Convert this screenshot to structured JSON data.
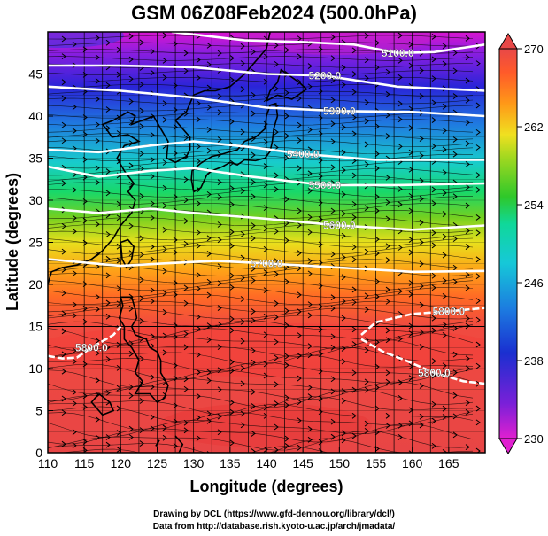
{
  "title": "GSM 06Z08Feb2024 (500.0hPa)",
  "xlabel": "Longitude (degrees)",
  "ylabel": "Latitude (degrees)",
  "credit_line1": "Drawing by DCL (https://www.gfd-dennou.org/library/dcl/)",
  "credit_line2": "Data from http://database.rish.kyoto-u.ac.jp/arch/jmadata/",
  "chart_data": {
    "type": "heatmap",
    "title": "GSM 06Z08Feb2024 (500.0hPa)",
    "xlabel": "Longitude (degrees)",
    "ylabel": "Latitude (degrees)",
    "xlim": [
      110,
      170
    ],
    "ylim": [
      0,
      50
    ],
    "x_ticks": [
      110,
      115,
      120,
      125,
      130,
      135,
      140,
      145,
      150,
      155,
      160,
      165
    ],
    "y_ticks": [
      0,
      5,
      10,
      15,
      20,
      25,
      30,
      35,
      40,
      45
    ],
    "colorbar": {
      "min": 230,
      "max": 270,
      "tick_labels": [
        "230",
        "238",
        "246",
        "254",
        "262",
        "270"
      ],
      "colors": [
        "#e020d0",
        "#7a20d8",
        "#1a2fd0",
        "#1c7ae0",
        "#16c8d8",
        "#10d89a",
        "#2ec82a",
        "#a0d820",
        "#f0e020",
        "#ff9818",
        "#ff5a2a",
        "#e84848"
      ]
    },
    "contours": [
      {
        "label": "5100.0",
        "points": [
          [
            127,
            50
          ],
          [
            137,
            49
          ],
          [
            145,
            48.8
          ],
          [
            152,
            48.5
          ],
          [
            158,
            47.5
          ],
          [
            163,
            47.6
          ],
          [
            170,
            48.5
          ]
        ]
      },
      {
        "label": "5200.0",
        "points": [
          [
            110,
            46
          ],
          [
            120,
            46
          ],
          [
            130,
            45.8
          ],
          [
            140,
            45
          ],
          [
            148,
            44.8
          ],
          [
            158,
            43.5
          ],
          [
            170,
            43
          ]
        ]
      },
      {
        "label": "5300.0",
        "points": [
          [
            110,
            43.5
          ],
          [
            120,
            43
          ],
          [
            130,
            42.2
          ],
          [
            140,
            41
          ],
          [
            150,
            40.6
          ],
          [
            160,
            40.5
          ],
          [
            170,
            40
          ]
        ]
      },
      {
        "label": "5400.0",
        "points": [
          [
            110,
            36
          ],
          [
            117,
            35.7
          ],
          [
            124,
            36.5
          ],
          [
            130,
            37
          ],
          [
            138,
            36.3
          ],
          [
            145,
            35.5
          ],
          [
            155,
            34.8
          ],
          [
            170,
            34.8
          ]
        ]
      },
      {
        "label": "5500.0",
        "points": [
          [
            110,
            34
          ],
          [
            117,
            32.8
          ],
          [
            124,
            33.5
          ],
          [
            130,
            33.8
          ],
          [
            138,
            32.8
          ],
          [
            148,
            31.8
          ],
          [
            158,
            31.8
          ],
          [
            170,
            32
          ]
        ]
      },
      {
        "label": "5600.0",
        "points": [
          [
            110,
            29
          ],
          [
            117,
            28.5
          ],
          [
            124,
            29
          ],
          [
            130,
            28.5
          ],
          [
            140,
            27.8
          ],
          [
            150,
            27
          ],
          [
            160,
            26.5
          ],
          [
            170,
            27
          ]
        ]
      },
      {
        "label": "5700.0",
        "points": [
          [
            110,
            23
          ],
          [
            115,
            22.6
          ],
          [
            120,
            22.2
          ],
          [
            126,
            22.5
          ],
          [
            133,
            22.8
          ],
          [
            140,
            22.5
          ],
          [
            150,
            22
          ],
          [
            160,
            21.5
          ],
          [
            170,
            21.6
          ]
        ]
      },
      {
        "label": "5800.0",
        "points": [
          [
            110,
            11.5
          ],
          [
            112,
            11.2
          ],
          [
            114,
            11.3
          ],
          [
            116,
            12.5
          ],
          [
            119,
            14
          ],
          [
            120,
            15
          ]
        ]
      },
      {
        "label": "5800.0",
        "points": [
          [
            153,
            14
          ],
          [
            155,
            15.5
          ],
          [
            160,
            16.5
          ],
          [
            165,
            16.8
          ],
          [
            170,
            17.2
          ]
        ]
      },
      {
        "label": "5800.0",
        "points": [
          [
            153,
            13.5
          ],
          [
            156,
            12
          ],
          [
            159,
            11
          ],
          [
            163,
            9.5
          ],
          [
            167,
            8.5
          ],
          [
            170,
            8.2
          ]
        ]
      }
    ]
  }
}
